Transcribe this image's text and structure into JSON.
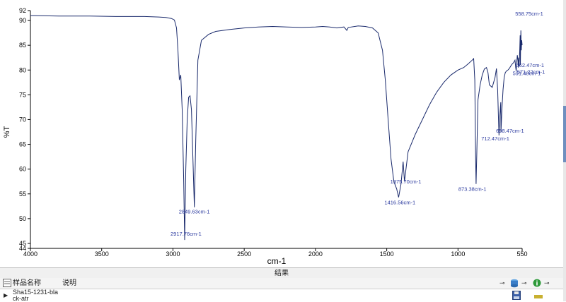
{
  "chart_data": {
    "type": "line",
    "xlabel": "cm-1",
    "ylabel": "%T",
    "xlim": [
      4000,
      550
    ],
    "ylim": [
      44,
      92
    ],
    "x_ticks": [
      4000,
      3500,
      3000,
      2500,
      2000,
      1500,
      1000,
      550
    ],
    "y_ticks": [
      92,
      90,
      85,
      80,
      75,
      70,
      65,
      60,
      55,
      50,
      45,
      44
    ],
    "grid": false,
    "series": [
      {
        "color": "#1a2a6c",
        "points": [
          [
            4000,
            91.0
          ],
          [
            3800,
            90.9
          ],
          [
            3600,
            90.9
          ],
          [
            3400,
            90.8
          ],
          [
            3200,
            90.8
          ],
          [
            3100,
            90.7
          ],
          [
            3050,
            90.6
          ],
          [
            3010,
            90.4
          ],
          [
            2990,
            90.1
          ],
          [
            2975,
            88.5
          ],
          [
            2965,
            84.0
          ],
          [
            2955,
            78.0
          ],
          [
            2945,
            79.0
          ],
          [
            2935,
            72.0
          ],
          [
            2925,
            58.0
          ],
          [
            2917.76,
            45.7
          ],
          [
            2910,
            60.0
          ],
          [
            2900,
            70.0
          ],
          [
            2890,
            74.5
          ],
          [
            2880,
            74.8
          ],
          [
            2870,
            72.0
          ],
          [
            2860,
            62.0
          ],
          [
            2849.63,
            52.3
          ],
          [
            2840,
            66.0
          ],
          [
            2825,
            82.0
          ],
          [
            2800,
            86.0
          ],
          [
            2750,
            87.2
          ],
          [
            2700,
            87.8
          ],
          [
            2600,
            88.2
          ],
          [
            2500,
            88.5
          ],
          [
            2400,
            88.7
          ],
          [
            2300,
            88.8
          ],
          [
            2200,
            88.7
          ],
          [
            2100,
            88.6
          ],
          [
            2000,
            88.7
          ],
          [
            1950,
            88.8
          ],
          [
            1900,
            88.7
          ],
          [
            1850,
            88.5
          ],
          [
            1800,
            88.7
          ],
          [
            1780,
            88.0
          ],
          [
            1770,
            88.6
          ],
          [
            1700,
            88.9
          ],
          [
            1650,
            88.8
          ],
          [
            1600,
            88.5
          ],
          [
            1560,
            87.5
          ],
          [
            1530,
            84.0
          ],
          [
            1510,
            78.0
          ],
          [
            1490,
            70.0
          ],
          [
            1470,
            62.0
          ],
          [
            1450,
            57.5
          ],
          [
            1430,
            56.0
          ],
          [
            1416.56,
            54.3
          ],
          [
            1400,
            57.0
          ],
          [
            1390,
            60.0
          ],
          [
            1385,
            61.5
          ],
          [
            1375.7,
            57.5
          ],
          [
            1365,
            60.0
          ],
          [
            1350,
            63.5
          ],
          [
            1300,
            67.0
          ],
          [
            1250,
            70.0
          ],
          [
            1200,
            73.0
          ],
          [
            1150,
            75.5
          ],
          [
            1100,
            77.5
          ],
          [
            1050,
            79.0
          ],
          [
            1000,
            80.0
          ],
          [
            960,
            80.5
          ],
          [
            930,
            81.2
          ],
          [
            900,
            82.0
          ],
          [
            890,
            82.3
          ],
          [
            882,
            78.0
          ],
          [
            876,
            62.0
          ],
          [
            873.38,
            57.0
          ],
          [
            868,
            63.0
          ],
          [
            860,
            74.0
          ],
          [
            845,
            77.0
          ],
          [
            830,
            79.0
          ],
          [
            815,
            80.2
          ],
          [
            800,
            80.5
          ],
          [
            790,
            79.5
          ],
          [
            780,
            77.0
          ],
          [
            760,
            76.5
          ],
          [
            740,
            78.5
          ],
          [
            730,
            80.3
          ],
          [
            722,
            76.0
          ],
          [
            716,
            70.0
          ],
          [
            712.47,
            66.8
          ],
          [
            706,
            71.0
          ],
          [
            700,
            73.5
          ],
          [
            698.47,
            67.5
          ],
          [
            692,
            72.0
          ],
          [
            684,
            76.0
          ],
          [
            676,
            78.5
          ],
          [
            668,
            79.5
          ],
          [
            660,
            79.8
          ],
          [
            650,
            80.0
          ],
          [
            640,
            80.3
          ],
          [
            630,
            80.8
          ],
          [
            620,
            81.2
          ],
          [
            610,
            81.5
          ],
          [
            600,
            82.0
          ],
          [
            595,
            80.5
          ],
          [
            591.48,
            79.8
          ],
          [
            588,
            81.5
          ],
          [
            584,
            83.0
          ],
          [
            580,
            82.0
          ],
          [
            577,
            80.5
          ],
          [
            574,
            82.5
          ],
          [
            571.22,
            80.8
          ],
          [
            567,
            84.0
          ],
          [
            564,
            87.0
          ],
          [
            562.47,
            81.0
          ],
          [
            560,
            86.0
          ],
          [
            558.75,
            88.0
          ],
          [
            556,
            84.0
          ],
          [
            553,
            86.0
          ],
          [
            550,
            85.0
          ]
        ]
      }
    ],
    "annotations": [
      {
        "label": "2917.76cm-1",
        "x": 2917.76,
        "y": 45.7
      },
      {
        "label": "2849.63cm-1",
        "x": 2849.63,
        "y": 52.3
      },
      {
        "label": "1416.56cm-1",
        "x": 1416.56,
        "y": 54.3
      },
      {
        "label": "1375.70cm-1",
        "x": 1375.7,
        "y": 57.5
      },
      {
        "label": "873.38cm-1",
        "x": 873.38,
        "y": 57.0
      },
      {
        "label": "712.47cm-1",
        "x": 712.47,
        "y": 66.8
      },
      {
        "label": "698.47cm-1",
        "x": 698.47,
        "y": 67.5
      },
      {
        "label": "591.48cm-1",
        "x": 591.48,
        "y": 79.8
      },
      {
        "label": "571.22cm-1",
        "x": 571.22,
        "y": 80.8
      },
      {
        "label": "562.47cm-1",
        "x": 562.47,
        "y": 81.0
      },
      {
        "label": "558.75cm-1",
        "x": 558.75,
        "y": 88.0
      }
    ]
  },
  "results_panel": {
    "title": "结果",
    "col_sample_name": "样品名称",
    "col_description": "说明",
    "rows": [
      {
        "sample_name": "Sha15-1231-black-atr",
        "description": ""
      }
    ],
    "pin_glyph": "⊸"
  },
  "colors": {
    "axis": "#000000",
    "annotation_text": "#2b3a9f",
    "line": "#1a2a6c"
  }
}
